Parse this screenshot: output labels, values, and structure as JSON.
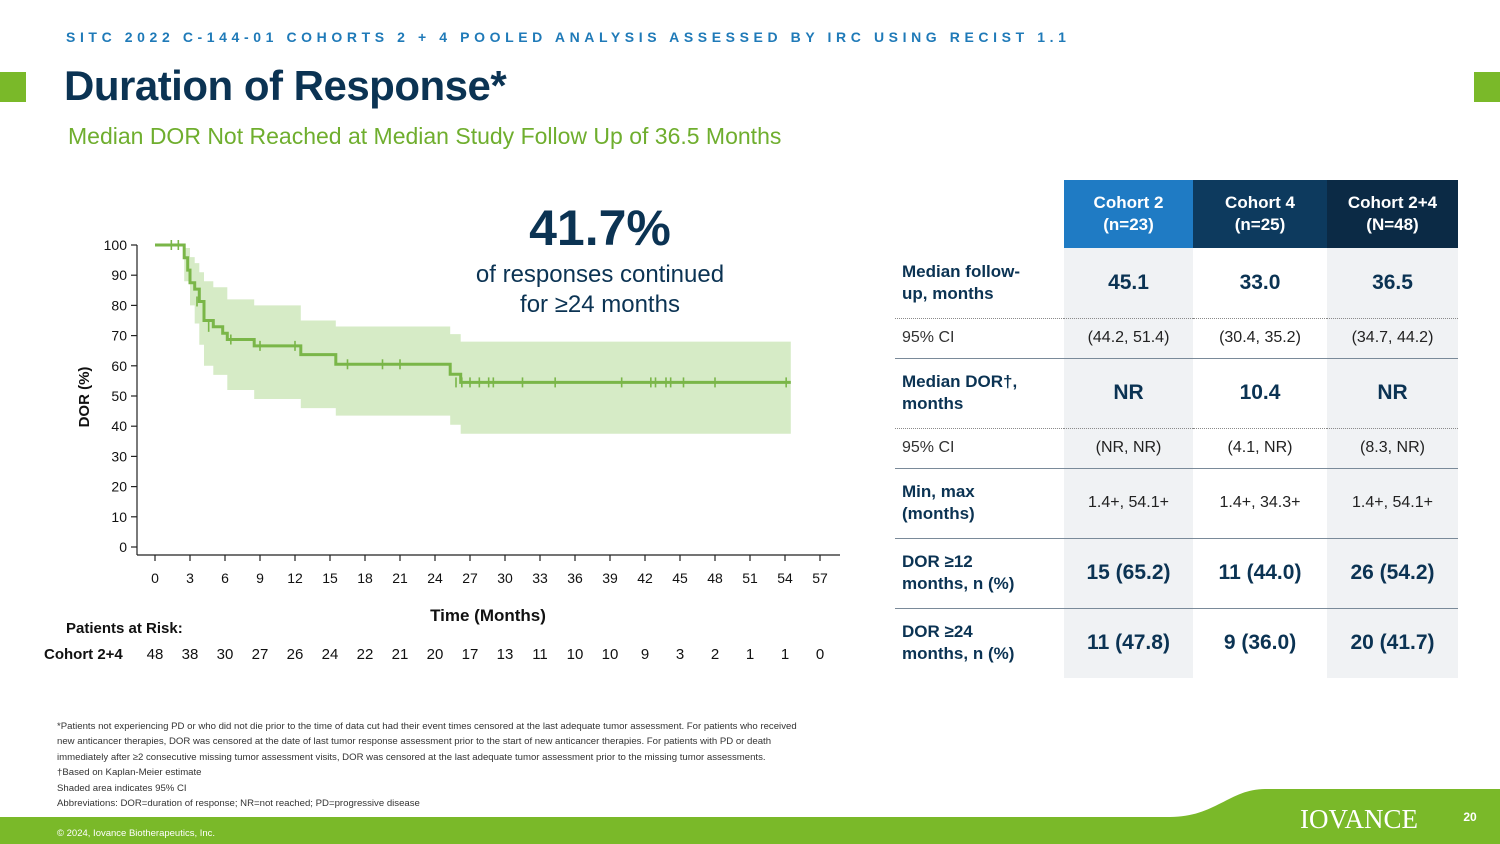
{
  "header": {
    "eyebrow": "SITC 2022 C-144-01 COHORTS 2 + 4 POOLED ANALYSIS ASSESSED BY IRC USING RECIST 1.1",
    "title": "Duration of Response*",
    "subtitle": "Median DOR Not Reached at Median Study Follow Up of 36.5 Months",
    "accent_color": "#7ab929",
    "title_color": "#0b3353"
  },
  "callout": {
    "value": "41.7%",
    "line1": "of responses continued",
    "line2": "for ≥24 months"
  },
  "chart_data": {
    "type": "line",
    "title": "",
    "xlabel": "Time (Months)",
    "ylabel": "DOR (%)",
    "xlim": [
      0,
      57
    ],
    "ylim": [
      0,
      100
    ],
    "x_ticks": [
      0,
      3,
      6,
      9,
      12,
      15,
      18,
      21,
      24,
      27,
      30,
      33,
      36,
      39,
      42,
      45,
      48,
      51,
      54,
      57
    ],
    "y_ticks": [
      0,
      10,
      20,
      30,
      40,
      50,
      60,
      70,
      80,
      90,
      100
    ],
    "line_color": "#7ab648",
    "band_color": "#d6ebc6",
    "km_steps": [
      [
        0,
        100
      ],
      [
        2.5,
        100
      ],
      [
        2.5,
        95.8
      ],
      [
        2.8,
        91.7
      ],
      [
        3.0,
        87.5
      ],
      [
        3.4,
        85.4
      ],
      [
        3.8,
        81.3
      ],
      [
        4.2,
        75.0
      ],
      [
        5.0,
        72.9
      ],
      [
        5.8,
        70.8
      ],
      [
        6.2,
        68.7
      ],
      [
        8.5,
        66.6
      ],
      [
        12.5,
        63.7
      ],
      [
        15.5,
        60.5
      ],
      [
        24.0,
        60.5
      ],
      [
        25.3,
        57.2
      ],
      [
        26.2,
        54.5
      ],
      [
        54.5,
        54.5
      ]
    ],
    "ci_lower": [
      [
        0,
        100
      ],
      [
        2.5,
        100
      ],
      [
        2.5,
        88
      ],
      [
        3.0,
        80
      ],
      [
        3.4,
        74
      ],
      [
        3.8,
        67
      ],
      [
        4.2,
        60
      ],
      [
        5.0,
        57
      ],
      [
        6.2,
        52
      ],
      [
        8.5,
        49
      ],
      [
        12.5,
        46
      ],
      [
        15.5,
        43.5
      ],
      [
        24.0,
        43.5
      ],
      [
        25.3,
        40.5
      ],
      [
        26.2,
        37.5
      ],
      [
        54.5,
        37.5
      ]
    ],
    "ci_upper": [
      [
        0,
        100
      ],
      [
        2.5,
        100
      ],
      [
        2.5,
        99
      ],
      [
        3.0,
        96
      ],
      [
        3.4,
        94
      ],
      [
        3.8,
        91
      ],
      [
        4.2,
        88
      ],
      [
        5.0,
        86
      ],
      [
        6.2,
        82
      ],
      [
        8.5,
        80
      ],
      [
        12.5,
        75
      ],
      [
        15.5,
        73
      ],
      [
        24.0,
        73
      ],
      [
        25.3,
        70.5
      ],
      [
        26.2,
        68
      ],
      [
        54.5,
        68
      ]
    ],
    "censored": [
      [
        1.4,
        100
      ],
      [
        2.0,
        100
      ],
      [
        3.6,
        81.3
      ],
      [
        4.6,
        72.9
      ],
      [
        6.5,
        68.7
      ],
      [
        9.0,
        66.6
      ],
      [
        12.0,
        66.6
      ],
      [
        16.5,
        60.5
      ],
      [
        19.5,
        60.5
      ],
      [
        21.0,
        60.5
      ],
      [
        25.8,
        54.5
      ],
      [
        26.3,
        54.5
      ],
      [
        27.0,
        54.5
      ],
      [
        27.8,
        54.5
      ],
      [
        28.6,
        54.5
      ],
      [
        29.0,
        54.5
      ],
      [
        31.5,
        54.5
      ],
      [
        34.3,
        54.5
      ],
      [
        40.0,
        54.5
      ],
      [
        42.5,
        54.5
      ],
      [
        42.9,
        54.5
      ],
      [
        43.8,
        54.5
      ],
      [
        44.2,
        54.5
      ],
      [
        45.3,
        54.5
      ],
      [
        48.0,
        54.5
      ],
      [
        54.1,
        54.5
      ]
    ],
    "at_risk": {
      "title": "Patients at Risk:",
      "label": "Cohort 2+4",
      "values": [
        48,
        38,
        30,
        27,
        26,
        24,
        22,
        21,
        20,
        17,
        13,
        11,
        10,
        10,
        9,
        3,
        2,
        1,
        1,
        0
      ]
    }
  },
  "table": {
    "columns": [
      {
        "line1": "Cohort 2",
        "line2": "(n=23)",
        "color": "#1f7bc4"
      },
      {
        "line1": "Cohort 4",
        "line2": "(n=25)",
        "color": "#0d3a5e"
      },
      {
        "line1": "Cohort 2+4",
        "line2": "(N=48)",
        "color": "#0b2a45"
      }
    ],
    "rows": [
      {
        "label1": "Median follow-",
        "label2": "up, months",
        "values": [
          "45.1",
          "33.0",
          "36.5"
        ]
      },
      {
        "label1": "95% CI",
        "label2": "",
        "values": [
          "(44.2, 51.4)",
          "(30.4, 35.2)",
          "(34.7, 44.2)"
        ]
      },
      {
        "label1": "Median DOR†,",
        "label2": "months",
        "values": [
          "NR",
          "10.4",
          "NR"
        ]
      },
      {
        "label1": "95% CI",
        "label2": "",
        "values": [
          "(NR, NR)",
          "(4.1, NR)",
          "(8.3, NR)"
        ]
      },
      {
        "label1": "Min, max",
        "label2": "(months)",
        "values": [
          "1.4+, 54.1+",
          "1.4+, 34.3+",
          "1.4+, 54.1+"
        ]
      },
      {
        "label1": "DOR ≥12",
        "label2": "months, n (%)",
        "values": [
          "15 (65.2)",
          "11 (44.0)",
          "26 (54.2)"
        ]
      },
      {
        "label1": "DOR ≥24",
        "label2": "months, n (%)",
        "values": [
          "11 (47.8)",
          "9 (36.0)",
          "20 (41.7)"
        ]
      }
    ]
  },
  "footnotes": [
    "*Patients not experiencing PD or who did not die prior to the time of data cut had their event times censored at the last adequate tumor assessment. For patients who received",
    "new anticancer therapies, DOR was censored at the date of last tumor response  assessment prior to the start of new anticancer therapies. For patients with PD or death",
    "immediately after ≥2 consecutive missing tumor assessment visits, DOR was censored at the last adequate tumor assessment prior to the missing tumor assessments.",
    "†Based on Kaplan-Meier estimate",
    "Shaded area indicates 95% CI",
    "Abbreviations: DOR=duration of response; NR=not reached; PD=progressive disease"
  ],
  "footer": {
    "copyright": "© 2024, Iovance Biotherapeutics, Inc.",
    "logo_text": "IOVANCE",
    "page_number": "20",
    "band_color": "#7ab929"
  }
}
